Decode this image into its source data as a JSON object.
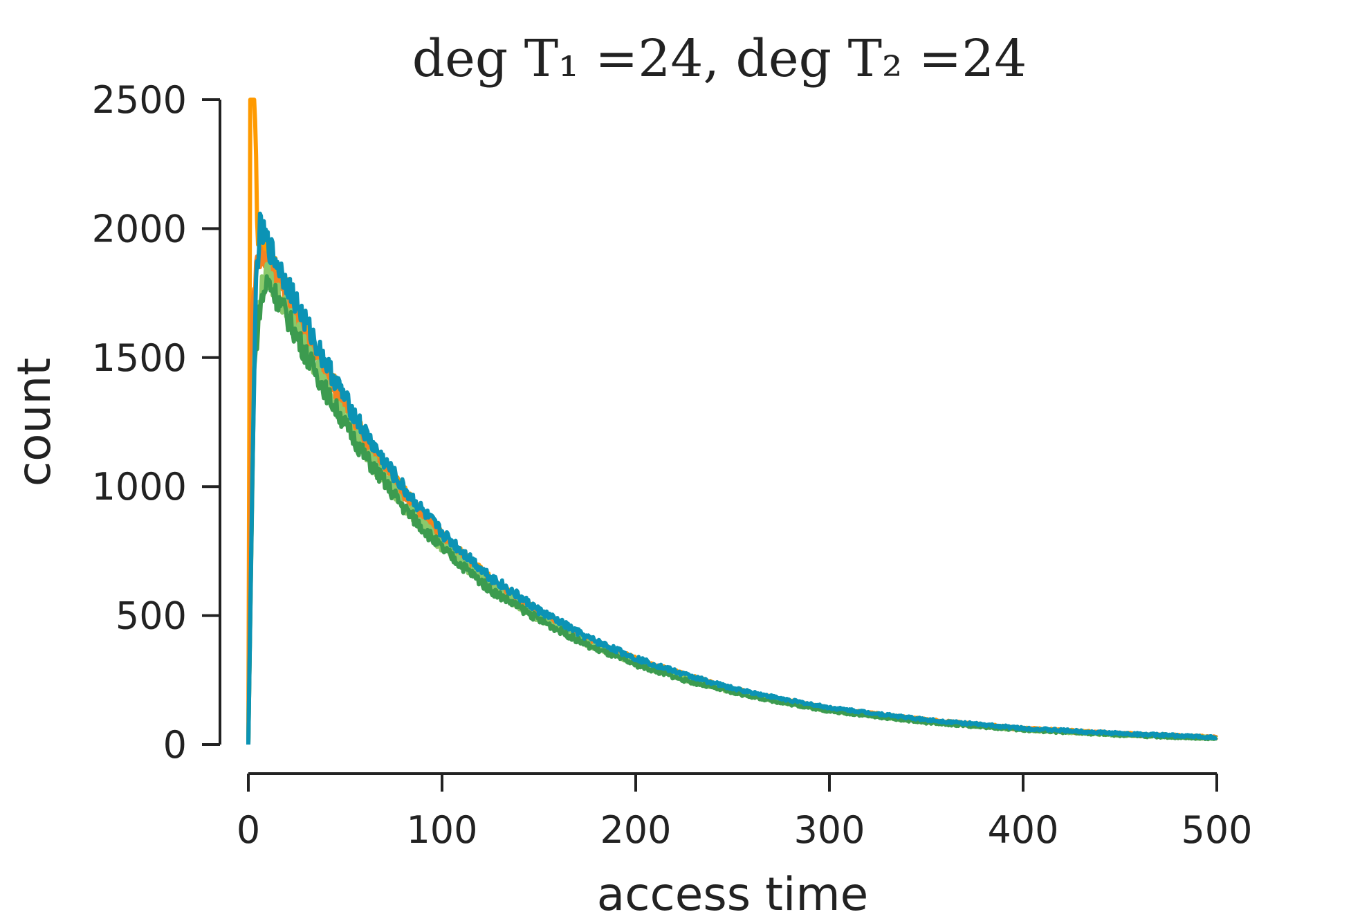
{
  "chart_data": {
    "type": "line",
    "title": "deg T₁ =24, deg T₂ =24",
    "xlabel": "access time",
    "ylabel": "count",
    "xlim": [
      0,
      500
    ],
    "ylim": [
      0,
      2500
    ],
    "x_ticks": [
      "0",
      "100",
      "200",
      "300",
      "400",
      "500"
    ],
    "y_ticks": [
      "0",
      "500",
      "1000",
      "1500",
      "2000",
      "2500"
    ],
    "grid": false,
    "series": [
      {
        "color": "#ff9a00",
        "points": [
          [
            0,
            0
          ],
          [
            1,
            2500
          ],
          [
            3,
            2500
          ],
          [
            5,
            1950
          ],
          [
            10,
            1900
          ],
          [
            20,
            1760
          ],
          [
            30,
            1600
          ],
          [
            40,
            1450
          ],
          [
            50,
            1320
          ],
          [
            60,
            1190
          ],
          [
            70,
            1080
          ],
          [
            80,
            980
          ],
          [
            90,
            890
          ],
          [
            100,
            810
          ],
          [
            125,
            640
          ],
          [
            150,
            510
          ],
          [
            175,
            410
          ],
          [
            200,
            330
          ],
          [
            225,
            270
          ],
          [
            250,
            215
          ],
          [
            275,
            175
          ],
          [
            300,
            140
          ],
          [
            350,
            95
          ],
          [
            400,
            62
          ],
          [
            450,
            42
          ],
          [
            500,
            28
          ]
        ]
      },
      {
        "color": "#f58220",
        "points": [
          [
            0,
            0
          ],
          [
            2,
            1700
          ],
          [
            5,
            1900
          ],
          [
            10,
            1880
          ],
          [
            20,
            1740
          ],
          [
            30,
            1590
          ],
          [
            40,
            1440
          ],
          [
            50,
            1310
          ],
          [
            60,
            1180
          ],
          [
            70,
            1070
          ],
          [
            80,
            970
          ],
          [
            90,
            880
          ],
          [
            100,
            800
          ],
          [
            125,
            630
          ],
          [
            150,
            505
          ],
          [
            175,
            405
          ],
          [
            200,
            325
          ],
          [
            225,
            265
          ],
          [
            250,
            212
          ],
          [
            275,
            172
          ],
          [
            300,
            138
          ],
          [
            350,
            92
          ],
          [
            400,
            60
          ],
          [
            450,
            40
          ],
          [
            500,
            26
          ]
        ]
      },
      {
        "color": "#8bc96a",
        "points": [
          [
            0,
            0
          ],
          [
            3,
            1500
          ],
          [
            6,
            1750
          ],
          [
            10,
            1820
          ],
          [
            20,
            1680
          ],
          [
            30,
            1530
          ],
          [
            40,
            1390
          ],
          [
            50,
            1260
          ],
          [
            60,
            1140
          ],
          [
            70,
            1030
          ],
          [
            80,
            930
          ],
          [
            90,
            850
          ],
          [
            100,
            770
          ],
          [
            125,
            610
          ],
          [
            150,
            490
          ],
          [
            175,
            390
          ],
          [
            200,
            315
          ],
          [
            225,
            255
          ],
          [
            250,
            205
          ],
          [
            275,
            165
          ],
          [
            300,
            132
          ],
          [
            350,
            88
          ],
          [
            400,
            58
          ],
          [
            450,
            38
          ],
          [
            500,
            25
          ]
        ]
      },
      {
        "color": "#3c9b4f",
        "points": [
          [
            0,
            0
          ],
          [
            3,
            1450
          ],
          [
            6,
            1700
          ],
          [
            10,
            1800
          ],
          [
            20,
            1660
          ],
          [
            30,
            1510
          ],
          [
            40,
            1370
          ],
          [
            50,
            1240
          ],
          [
            60,
            1120
          ],
          [
            70,
            1020
          ],
          [
            80,
            920
          ],
          [
            90,
            840
          ],
          [
            100,
            760
          ],
          [
            125,
            600
          ],
          [
            150,
            485
          ],
          [
            175,
            385
          ],
          [
            200,
            310
          ],
          [
            225,
            250
          ],
          [
            250,
            202
          ],
          [
            275,
            163
          ],
          [
            300,
            130
          ],
          [
            350,
            86
          ],
          [
            400,
            57
          ],
          [
            450,
            37
          ],
          [
            500,
            24
          ]
        ]
      },
      {
        "color": "#0b93b5",
        "points": [
          [
            0,
            0
          ],
          [
            2,
            1000
          ],
          [
            4,
            1800
          ],
          [
            6,
            2000
          ],
          [
            10,
            1940
          ],
          [
            20,
            1790
          ],
          [
            30,
            1630
          ],
          [
            40,
            1480
          ],
          [
            50,
            1340
          ],
          [
            60,
            1210
          ],
          [
            70,
            1100
          ],
          [
            80,
            995
          ],
          [
            90,
            905
          ],
          [
            100,
            820
          ],
          [
            125,
            650
          ],
          [
            150,
            520
          ],
          [
            175,
            415
          ],
          [
            200,
            335
          ],
          [
            225,
            272
          ],
          [
            250,
            218
          ],
          [
            275,
            178
          ],
          [
            300,
            143
          ],
          [
            350,
            96
          ],
          [
            400,
            63
          ],
          [
            450,
            43
          ],
          [
            500,
            28
          ]
        ]
      }
    ]
  }
}
